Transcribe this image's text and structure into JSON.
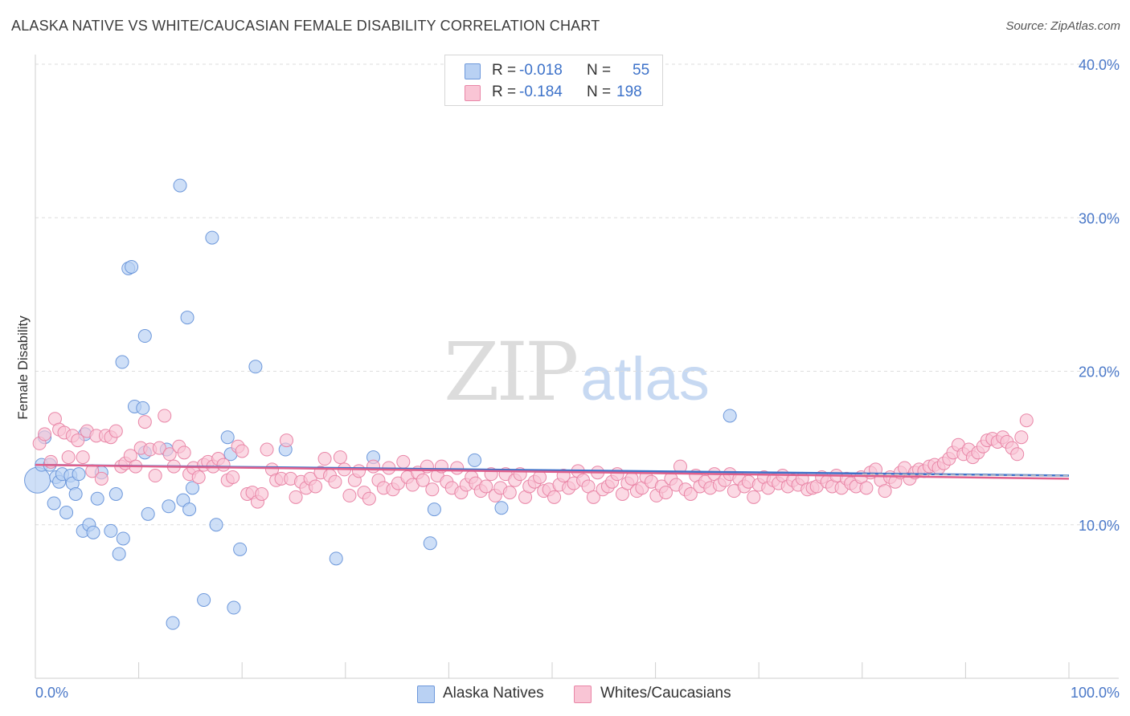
{
  "title": "ALASKA NATIVE VS WHITE/CAUCASIAN FEMALE DISABILITY CORRELATION CHART",
  "source": "Source: ZipAtlas.com",
  "watermark": {
    "zip": "ZIP",
    "atlas": "atlas"
  },
  "legend": {
    "rows": [
      {
        "r_label": "R =",
        "r_value": "-0.018",
        "n_label": "N =",
        "n_value": "55",
        "fill": "#b9d1f3",
        "stroke": "#6d98db"
      },
      {
        "r_label": "R =",
        "r_value": "-0.184",
        "n_label": "N =",
        "n_value": "198",
        "fill": "#f9c5d5",
        "stroke": "#e986a7"
      }
    ]
  },
  "bottom_legend": [
    {
      "label": "Alaska Natives",
      "fill": "#b9d1f3",
      "stroke": "#6d98db"
    },
    {
      "label": "Whites/Caucasians",
      "fill": "#f9c5d5",
      "stroke": "#e986a7"
    }
  ],
  "chart_data": {
    "type": "scatter",
    "title": "ALASKA NATIVE VS WHITE/CAUCASIAN FEMALE DISABILITY CORRELATION CHART",
    "xlabel": "",
    "ylabel": "Female Disability",
    "xlim": [
      0,
      100
    ],
    "ylim": [
      0,
      40
    ],
    "x_tick_labels": [
      "0.0%",
      "100.0%"
    ],
    "y_ticks": [
      10,
      20,
      30,
      40
    ],
    "y_tick_labels": [
      "10.0%",
      "20.0%",
      "30.0%",
      "40.0%"
    ],
    "grid": true,
    "series": [
      {
        "name": "Alaska Natives",
        "color": "#6d98db",
        "fill": "#b9d1f3",
        "trend": {
          "x": [
            0,
            100
          ],
          "y": [
            13.9,
            13.2
          ]
        },
        "points": [
          [
            0.2,
            12.9
          ],
          [
            0.6,
            13.9
          ],
          [
            0.9,
            15.7
          ],
          [
            1.4,
            13.9
          ],
          [
            1.8,
            11.4
          ],
          [
            2.0,
            13.1
          ],
          [
            2.3,
            12.8
          ],
          [
            2.6,
            13.3
          ],
          [
            3.0,
            10.8
          ],
          [
            3.4,
            13.2
          ],
          [
            3.6,
            12.7
          ],
          [
            3.9,
            12.0
          ],
          [
            4.2,
            13.3
          ],
          [
            4.6,
            9.6
          ],
          [
            4.8,
            15.9
          ],
          [
            5.2,
            10.0
          ],
          [
            5.6,
            9.5
          ],
          [
            6.0,
            11.7
          ],
          [
            6.4,
            13.4
          ],
          [
            7.3,
            9.6
          ],
          [
            7.8,
            12.0
          ],
          [
            8.1,
            8.1
          ],
          [
            8.5,
            9.1
          ],
          [
            9.0,
            26.7
          ],
          [
            9.3,
            26.8
          ],
          [
            9.6,
            17.7
          ],
          [
            10.4,
            17.6
          ],
          [
            10.6,
            14.7
          ],
          [
            10.9,
            10.7
          ],
          [
            12.7,
            14.9
          ],
          [
            12.9,
            11.2
          ],
          [
            13.3,
            3.6
          ],
          [
            14.0,
            32.1
          ],
          [
            14.3,
            11.6
          ],
          [
            14.7,
            23.5
          ],
          [
            14.9,
            11.0
          ],
          [
            15.2,
            12.4
          ],
          [
            16.3,
            5.1
          ],
          [
            17.1,
            28.7
          ],
          [
            17.5,
            10.0
          ],
          [
            10.6,
            22.3
          ],
          [
            18.6,
            15.7
          ],
          [
            18.9,
            14.6
          ],
          [
            19.2,
            4.6
          ],
          [
            19.8,
            8.4
          ],
          [
            21.3,
            20.3
          ],
          [
            24.2,
            14.9
          ],
          [
            29.1,
            7.8
          ],
          [
            32.7,
            14.4
          ],
          [
            38.2,
            8.8
          ],
          [
            38.6,
            11.0
          ],
          [
            42.5,
            14.2
          ],
          [
            45.1,
            11.1
          ],
          [
            8.4,
            20.6
          ],
          [
            67.2,
            17.1
          ]
        ]
      },
      {
        "name": "Whites/Caucasians",
        "color": "#e986a7",
        "fill": "#f9c5d5",
        "trend": {
          "x": [
            0,
            100
          ],
          "y": [
            13.9,
            13.0
          ]
        },
        "trend_dashed": {
          "x": [
            80,
            100
          ],
          "y": [
            13.3,
            13.2
          ]
        },
        "points": [
          [
            0.4,
            15.3
          ],
          [
            0.9,
            15.9
          ],
          [
            1.5,
            14.1
          ],
          [
            1.9,
            16.9
          ],
          [
            2.3,
            16.2
          ],
          [
            2.8,
            16.0
          ],
          [
            3.2,
            14.4
          ],
          [
            3.6,
            15.8
          ],
          [
            4.1,
            15.5
          ],
          [
            4.6,
            14.4
          ],
          [
            5.0,
            16.1
          ],
          [
            5.5,
            13.5
          ],
          [
            5.9,
            15.8
          ],
          [
            6.4,
            13.0
          ],
          [
            6.8,
            15.8
          ],
          [
            7.3,
            15.7
          ],
          [
            7.8,
            16.1
          ],
          [
            8.3,
            13.8
          ],
          [
            8.7,
            14.0
          ],
          [
            9.2,
            14.5
          ],
          [
            9.7,
            13.8
          ],
          [
            10.2,
            15.0
          ],
          [
            10.6,
            16.7
          ],
          [
            11.1,
            14.9
          ],
          [
            11.6,
            13.2
          ],
          [
            12.0,
            15.0
          ],
          [
            12.5,
            17.1
          ],
          [
            13.0,
            14.6
          ],
          [
            13.4,
            13.8
          ],
          [
            13.9,
            15.1
          ],
          [
            14.4,
            14.7
          ],
          [
            14.9,
            13.3
          ],
          [
            15.3,
            13.7
          ],
          [
            15.8,
            13.1
          ],
          [
            16.3,
            13.9
          ],
          [
            16.7,
            14.1
          ],
          [
            17.2,
            13.8
          ],
          [
            17.7,
            14.3
          ],
          [
            18.2,
            13.9
          ],
          [
            18.6,
            12.9
          ],
          [
            19.1,
            13.1
          ],
          [
            19.6,
            15.1
          ],
          [
            20.0,
            14.8
          ],
          [
            20.5,
            12.0
          ],
          [
            21.0,
            12.1
          ],
          [
            21.5,
            11.5
          ],
          [
            21.9,
            12.0
          ],
          [
            22.4,
            14.9
          ],
          [
            22.9,
            13.6
          ],
          [
            23.3,
            12.9
          ],
          [
            23.8,
            13.0
          ],
          [
            24.3,
            15.5
          ],
          [
            24.7,
            13.0
          ],
          [
            25.2,
            11.8
          ],
          [
            25.7,
            12.8
          ],
          [
            26.2,
            12.4
          ],
          [
            26.6,
            13.0
          ],
          [
            27.1,
            12.5
          ],
          [
            27.6,
            13.4
          ],
          [
            28.0,
            14.3
          ],
          [
            28.5,
            13.2
          ],
          [
            29.0,
            12.8
          ],
          [
            29.5,
            14.4
          ],
          [
            29.9,
            13.6
          ],
          [
            30.4,
            11.9
          ],
          [
            30.9,
            12.9
          ],
          [
            31.3,
            13.5
          ],
          [
            31.8,
            12.1
          ],
          [
            32.3,
            11.7
          ],
          [
            32.7,
            13.8
          ],
          [
            33.2,
            12.9
          ],
          [
            33.7,
            12.4
          ],
          [
            34.2,
            13.7
          ],
          [
            34.6,
            12.3
          ],
          [
            35.1,
            12.7
          ],
          [
            35.6,
            14.1
          ],
          [
            36.0,
            13.1
          ],
          [
            36.5,
            12.6
          ],
          [
            37.0,
            13.4
          ],
          [
            37.5,
            12.9
          ],
          [
            37.9,
            13.8
          ],
          [
            38.4,
            12.3
          ],
          [
            38.9,
            13.2
          ],
          [
            39.3,
            13.8
          ],
          [
            39.8,
            12.8
          ],
          [
            40.3,
            12.4
          ],
          [
            40.8,
            13.7
          ],
          [
            41.2,
            12.1
          ],
          [
            41.7,
            12.6
          ],
          [
            42.2,
            13.1
          ],
          [
            42.6,
            12.7
          ],
          [
            43.1,
            12.2
          ],
          [
            43.6,
            12.5
          ],
          [
            44.1,
            13.3
          ],
          [
            44.5,
            11.9
          ],
          [
            45.0,
            12.4
          ],
          [
            45.5,
            13.3
          ],
          [
            45.9,
            12.1
          ],
          [
            46.4,
            12.9
          ],
          [
            46.9,
            13.3
          ],
          [
            47.4,
            11.8
          ],
          [
            47.8,
            12.5
          ],
          [
            48.3,
            12.8
          ],
          [
            48.8,
            13.1
          ],
          [
            49.2,
            12.2
          ],
          [
            49.7,
            12.3
          ],
          [
            50.2,
            11.8
          ],
          [
            50.7,
            12.6
          ],
          [
            51.1,
            13.2
          ],
          [
            51.6,
            12.4
          ],
          [
            52.1,
            12.7
          ],
          [
            52.5,
            13.5
          ],
          [
            53.0,
            12.9
          ],
          [
            53.5,
            12.5
          ],
          [
            54.0,
            11.8
          ],
          [
            54.4,
            13.4
          ],
          [
            54.9,
            12.3
          ],
          [
            55.4,
            12.5
          ],
          [
            55.8,
            12.8
          ],
          [
            56.3,
            13.3
          ],
          [
            56.8,
            12.0
          ],
          [
            57.3,
            12.7
          ],
          [
            57.7,
            13.0
          ],
          [
            58.2,
            12.2
          ],
          [
            58.7,
            12.4
          ],
          [
            59.1,
            13.1
          ],
          [
            59.6,
            12.8
          ],
          [
            60.1,
            11.9
          ],
          [
            60.6,
            12.5
          ],
          [
            61.0,
            12.1
          ],
          [
            61.5,
            13.0
          ],
          [
            62.0,
            12.6
          ],
          [
            62.4,
            13.8
          ],
          [
            62.9,
            12.3
          ],
          [
            63.4,
            12.0
          ],
          [
            63.9,
            13.2
          ],
          [
            64.3,
            12.5
          ],
          [
            64.8,
            12.8
          ],
          [
            65.3,
            12.4
          ],
          [
            65.7,
            13.3
          ],
          [
            66.2,
            12.6
          ],
          [
            66.7,
            12.9
          ],
          [
            67.2,
            13.3
          ],
          [
            67.6,
            12.2
          ],
          [
            68.1,
            13.0
          ],
          [
            68.6,
            12.5
          ],
          [
            69.0,
            12.8
          ],
          [
            69.5,
            11.8
          ],
          [
            70.0,
            12.6
          ],
          [
            70.5,
            13.1
          ],
          [
            70.9,
            12.4
          ],
          [
            71.4,
            12.9
          ],
          [
            71.9,
            12.7
          ],
          [
            72.3,
            13.2
          ],
          [
            72.8,
            12.5
          ],
          [
            73.3,
            12.9
          ],
          [
            73.8,
            12.6
          ],
          [
            74.2,
            13.0
          ],
          [
            74.7,
            12.3
          ],
          [
            75.2,
            12.4
          ],
          [
            75.6,
            12.5
          ],
          [
            76.1,
            13.1
          ],
          [
            76.6,
            12.8
          ],
          [
            77.1,
            12.5
          ],
          [
            77.5,
            13.2
          ],
          [
            78.0,
            12.4
          ],
          [
            78.5,
            13.0
          ],
          [
            78.9,
            12.7
          ],
          [
            79.4,
            12.5
          ],
          [
            79.9,
            13.1
          ],
          [
            80.4,
            12.4
          ],
          [
            80.8,
            13.4
          ],
          [
            81.3,
            13.6
          ],
          [
            81.8,
            12.9
          ],
          [
            82.2,
            12.2
          ],
          [
            82.7,
            13.1
          ],
          [
            83.2,
            12.8
          ],
          [
            83.7,
            13.4
          ],
          [
            84.1,
            13.7
          ],
          [
            84.6,
            13.0
          ],
          [
            85.1,
            13.4
          ],
          [
            85.5,
            13.6
          ],
          [
            86.0,
            13.5
          ],
          [
            86.5,
            13.8
          ],
          [
            87.0,
            13.9
          ],
          [
            87.4,
            13.7
          ],
          [
            87.9,
            14.0
          ],
          [
            88.4,
            14.3
          ],
          [
            88.8,
            14.7
          ],
          [
            89.3,
            15.2
          ],
          [
            89.8,
            14.6
          ],
          [
            90.3,
            14.9
          ],
          [
            90.7,
            14.4
          ],
          [
            91.2,
            14.7
          ],
          [
            91.7,
            15.1
          ],
          [
            92.1,
            15.5
          ],
          [
            92.6,
            15.6
          ],
          [
            93.1,
            15.4
          ],
          [
            93.6,
            15.7
          ],
          [
            94.0,
            15.4
          ],
          [
            94.5,
            15.0
          ],
          [
            95.0,
            14.6
          ],
          [
            95.4,
            15.7
          ],
          [
            95.9,
            16.8
          ]
        ]
      }
    ]
  }
}
